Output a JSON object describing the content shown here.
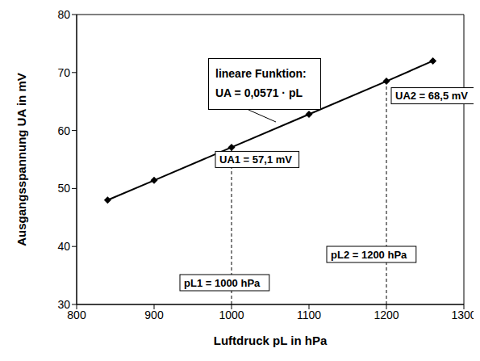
{
  "chart_data": {
    "type": "line",
    "x_label": "Luftdruck pL in hPa",
    "y_label": "Ausgangsspannung UA in mV",
    "x": [
      840,
      900,
      1000,
      1100,
      1200,
      1260
    ],
    "series": [
      {
        "values": [
          48.0,
          51.4,
          57.1,
          62.8,
          68.5,
          72.0
        ],
        "color": "#000000",
        "marker": "diamond",
        "line_style": "solid"
      }
    ],
    "xlim": [
      800,
      1300
    ],
    "xticks": [
      800,
      900,
      1000,
      1100,
      1200,
      1300
    ],
    "ylim": [
      30,
      80
    ],
    "yticks": [
      30,
      40,
      50,
      60,
      70,
      80
    ],
    "grid": false,
    "annotations": [
      {
        "text": [
          "lineare Funktion:",
          "UA = 0,0571 · pL"
        ]
      },
      {
        "text": "UA1 = 57,1 mV",
        "x": 1000,
        "y": 57.1
      },
      {
        "text": "UA2 = 68,5 mV",
        "x": 1200,
        "y": 68.5
      },
      {
        "text": "pL1 = 1000 hPa",
        "x": 1000,
        "y": 57.1,
        "line_style": "dashed"
      },
      {
        "text": "pL2 = 1200 hPa",
        "x": 1200,
        "y": 68.5,
        "line_style": "dashed"
      }
    ]
  }
}
